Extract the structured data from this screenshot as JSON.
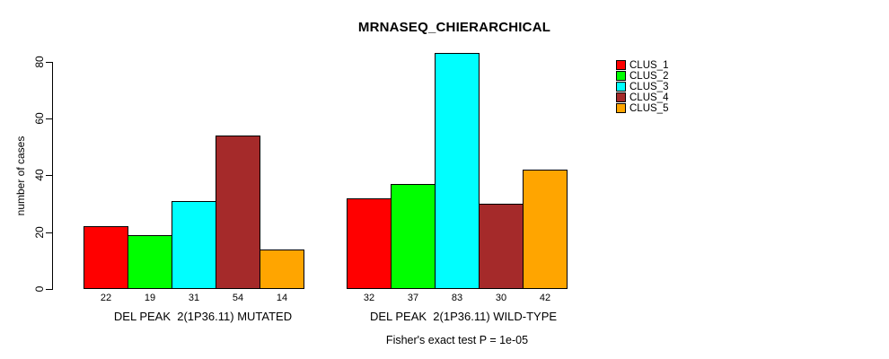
{
  "chart_data": {
    "type": "bar",
    "title": "MRNASEQ_CHIERARCHICAL",
    "ylabel": "number of cases",
    "xlabel": "",
    "yticks": [
      0,
      20,
      40,
      60,
      80
    ],
    "ylim": [
      0,
      84
    ],
    "grid": false,
    "legend_position": "right",
    "legend": [
      {
        "label": "CLUS_1",
        "color": "#FF0000"
      },
      {
        "label": "CLUS_2",
        "color": "#00FF00"
      },
      {
        "label": "CLUS_3",
        "color": "#00FFFF"
      },
      {
        "label": "CLUS_4",
        "color": "#A52A2A"
      },
      {
        "label": "CLUS_5",
        "color": "#FFA500"
      }
    ],
    "groups": [
      {
        "label": "DEL PEAK  2(1P36.11) MUTATED",
        "values": [
          22,
          19,
          31,
          54,
          14
        ]
      },
      {
        "label": "DEL PEAK  2(1P36.11) WILD-TYPE",
        "values": [
          32,
          37,
          83,
          30,
          42
        ]
      }
    ],
    "annotation": "Fisher's exact test P = 1e-05"
  }
}
